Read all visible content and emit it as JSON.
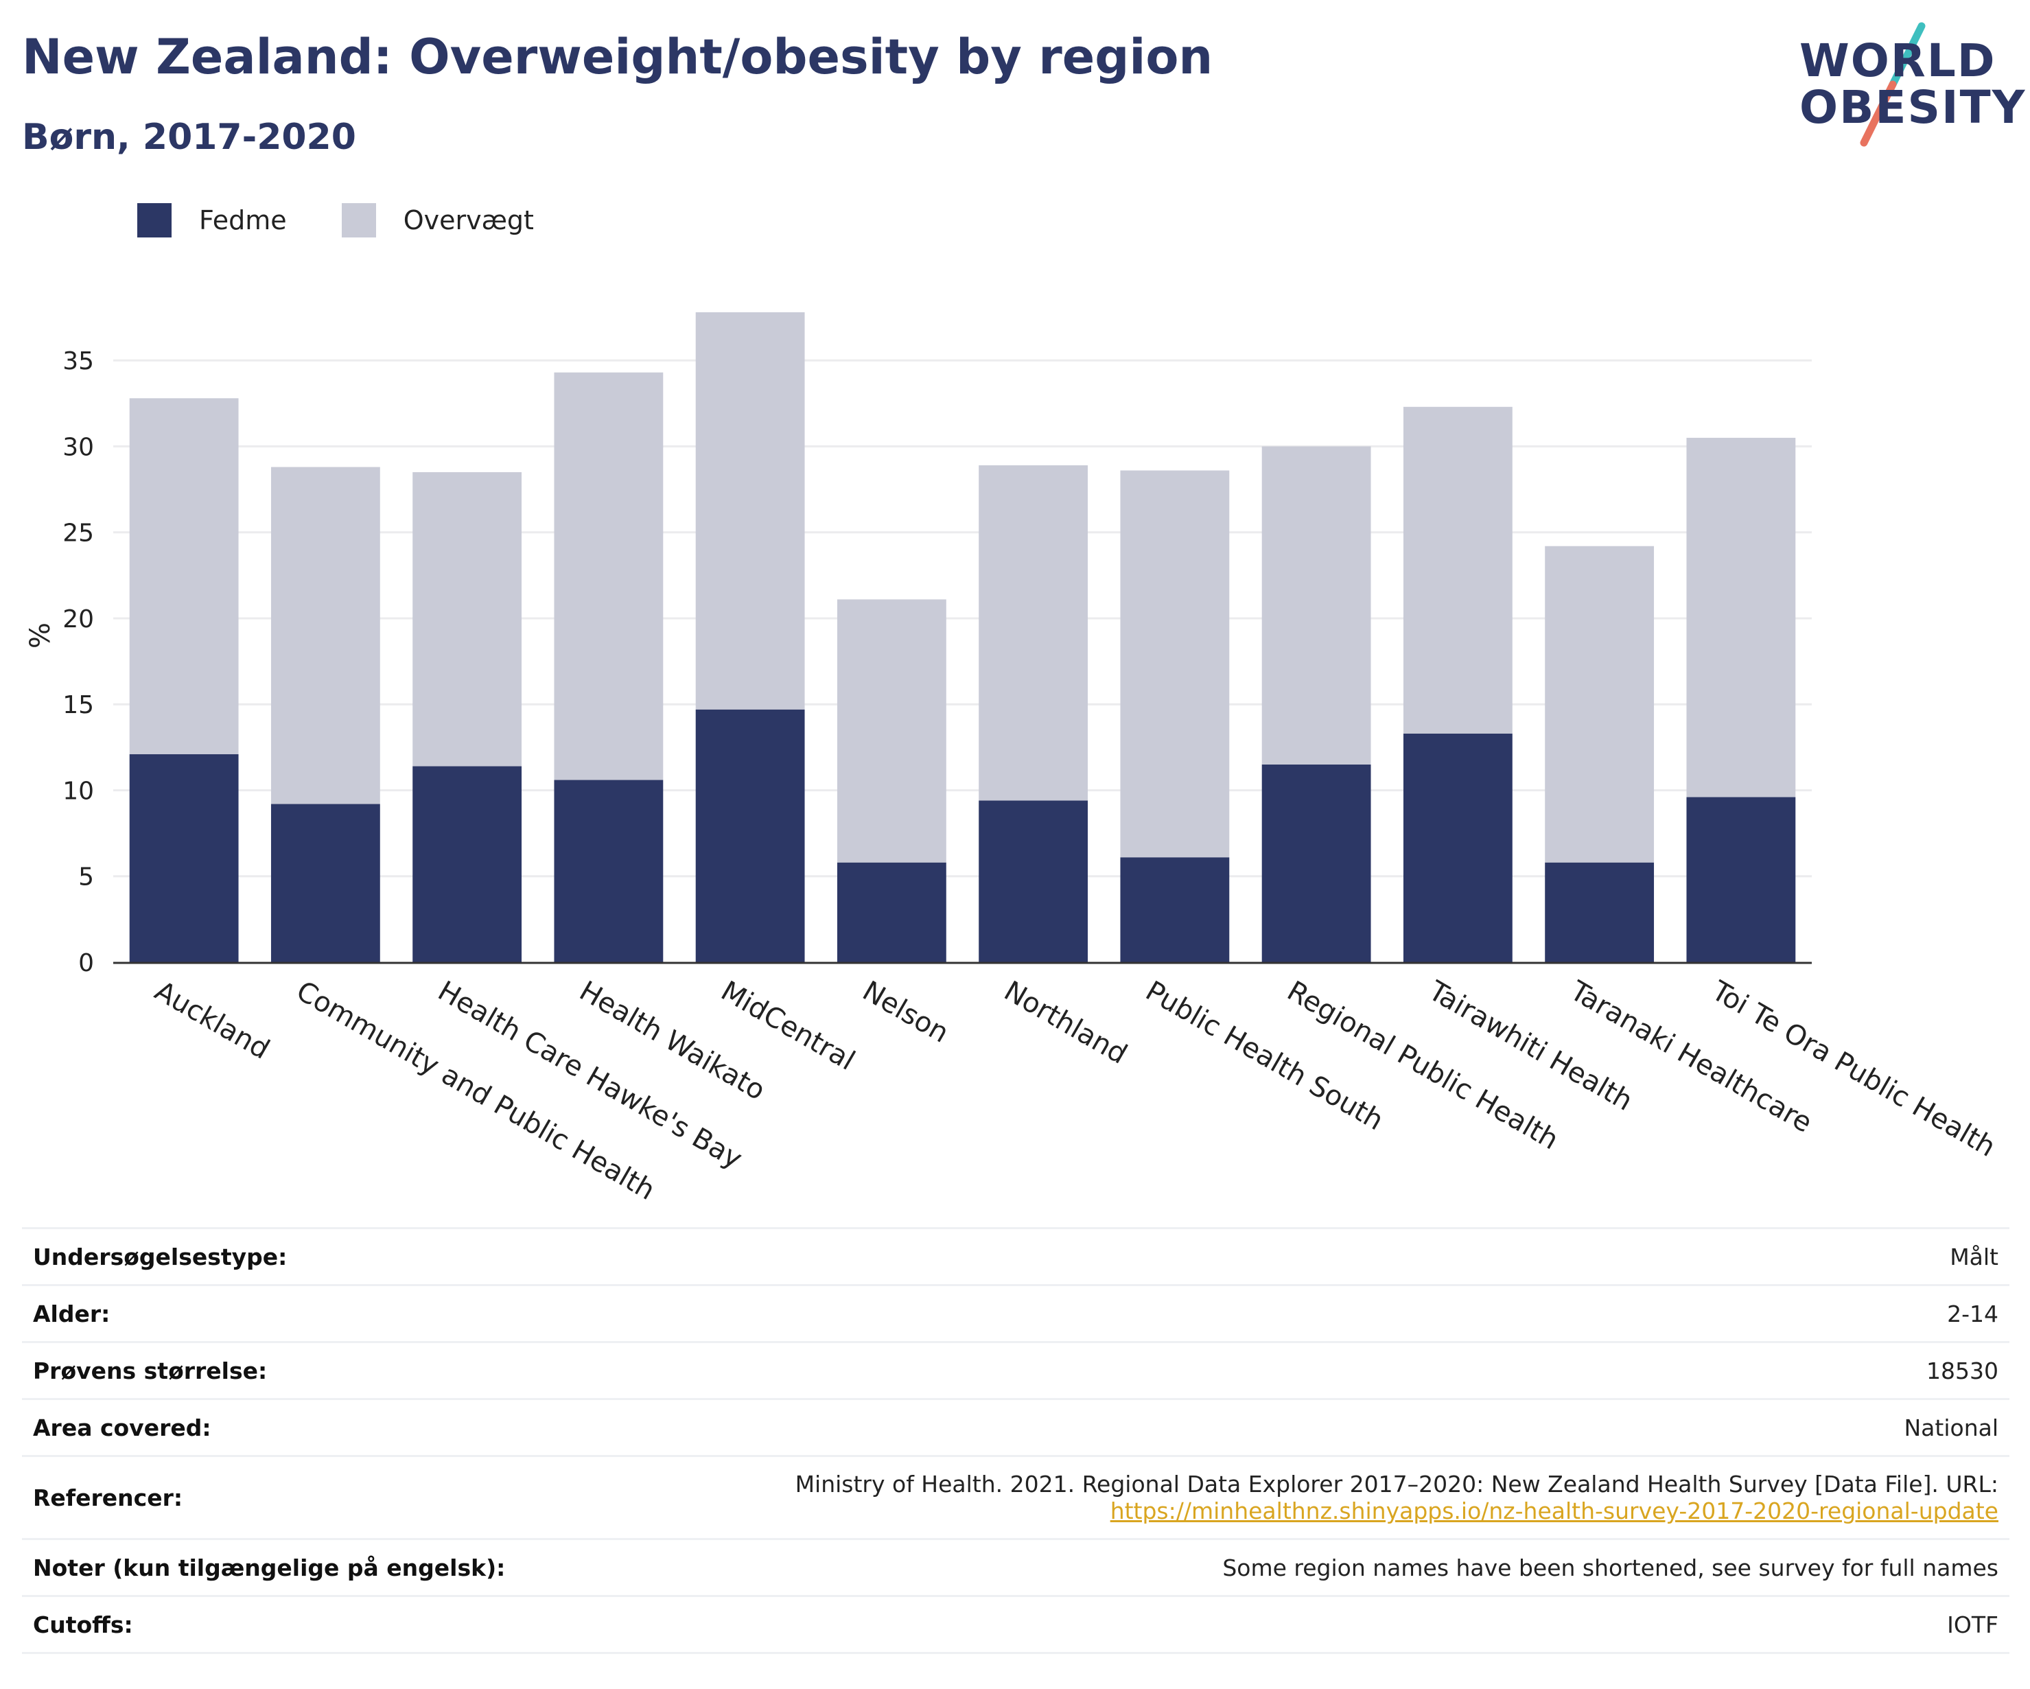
{
  "header": {
    "title": "New Zealand: Overweight/obesity by region",
    "subtitle": "Børn, 2017-2020"
  },
  "logo": {
    "line1": "WORLD",
    "line2": "OBESITY",
    "colors": {
      "text": "#2c3765",
      "slash_teal": "#3fbfbf",
      "slash_coral": "#e8735f"
    }
  },
  "legend": [
    {
      "label": "Fedme",
      "color": "#2c3765"
    },
    {
      "label": "Overvægt",
      "color": "#c9cbd7"
    }
  ],
  "chart_data": {
    "type": "bar",
    "stacked": true,
    "ylabel": "%",
    "ylim": [
      0,
      38
    ],
    "yticks": [
      0,
      5,
      10,
      15,
      20,
      25,
      30,
      35
    ],
    "grid": true,
    "legend_position": "top-left",
    "categories": [
      "Auckland",
      "Community and Public Health",
      "Health Care Hawke's Bay",
      "Health Waikato",
      "MidCentral",
      "Nelson",
      "Northland",
      "Public Health South",
      "Regional Public Health",
      "Tairawhiti Health",
      "Taranaki Healthcare",
      "Toi Te Ora Public Health"
    ],
    "series": [
      {
        "name": "Fedme",
        "color": "#2c3765",
        "values": [
          12.1,
          9.2,
          11.4,
          10.6,
          14.7,
          5.8,
          9.4,
          6.1,
          11.5,
          13.3,
          5.8,
          9.6
        ]
      },
      {
        "name": "Overvægt",
        "color": "#c9cbd7",
        "values": [
          20.7,
          19.6,
          17.1,
          23.7,
          23.1,
          15.3,
          19.5,
          22.5,
          18.5,
          19.0,
          18.4,
          20.9
        ]
      }
    ]
  },
  "meta": {
    "rows": [
      {
        "key": "Undersøgelsestype:",
        "value": "Målt"
      },
      {
        "key": "Alder:",
        "value": "2-14"
      },
      {
        "key": "Prøvens størrelse:",
        "value": "18530"
      },
      {
        "key": "Area covered:",
        "value": "National"
      },
      {
        "key": "Referencer:",
        "value": "Ministry of Health. 2021. Regional Data Explorer 2017–2020: New Zealand Health Survey [Data File]. URL:",
        "link": "https://minhealthnz.shinyapps.io/nz-health-survey-2017-2020-regional-update"
      },
      {
        "key": "Noter (kun tilgængelige på engelsk):",
        "value": "Some region names have been shortened, see survey for full names"
      },
      {
        "key": "Cutoffs:",
        "value": "IOTF"
      }
    ]
  }
}
